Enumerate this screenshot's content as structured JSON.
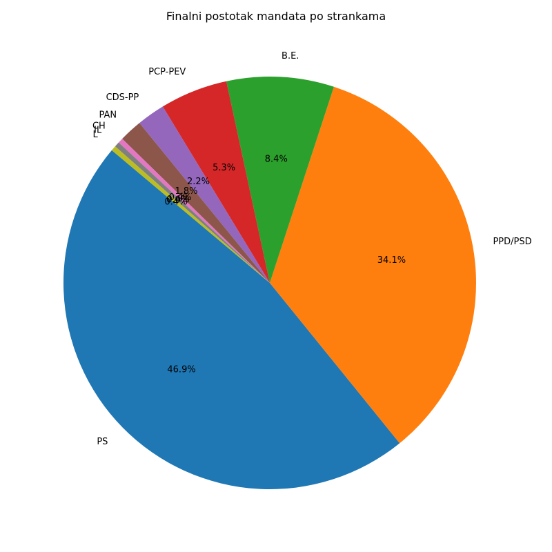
{
  "chart_data": {
    "type": "pie",
    "title": "Finalni postotak mandata po strankama",
    "start_angle_deg": 140,
    "direction": "counterclockwise",
    "slices": [
      {
        "label": "PS",
        "value": 46.9,
        "pct_label": "46.9%",
        "color": "#1f77b4"
      },
      {
        "label": "PPD/PSD",
        "value": 34.1,
        "pct_label": "34.1%",
        "color": "#ff7f0e"
      },
      {
        "label": "B.E.",
        "value": 8.4,
        "pct_label": "8.4%",
        "color": "#2ca02c"
      },
      {
        "label": "PCP-PEV",
        "value": 5.3,
        "pct_label": "5.3%",
        "color": "#d62728"
      },
      {
        "label": "CDS-PP",
        "value": 2.2,
        "pct_label": "2.2%",
        "color": "#9467bd"
      },
      {
        "label": "PAN",
        "value": 1.8,
        "pct_label": "1.8%",
        "color": "#8c564b"
      },
      {
        "label": "CH",
        "value": 0.4,
        "pct_label": "0.4%",
        "color": "#e377c2"
      },
      {
        "label": "IL",
        "value": 0.4,
        "pct_label": "0.4%",
        "color": "#7f7f7f"
      },
      {
        "label": "L",
        "value": 0.4,
        "pct_label": "0.4%",
        "color": "#bcbd22"
      }
    ],
    "extra_pct_labels": [
      "0.0%"
    ]
  }
}
